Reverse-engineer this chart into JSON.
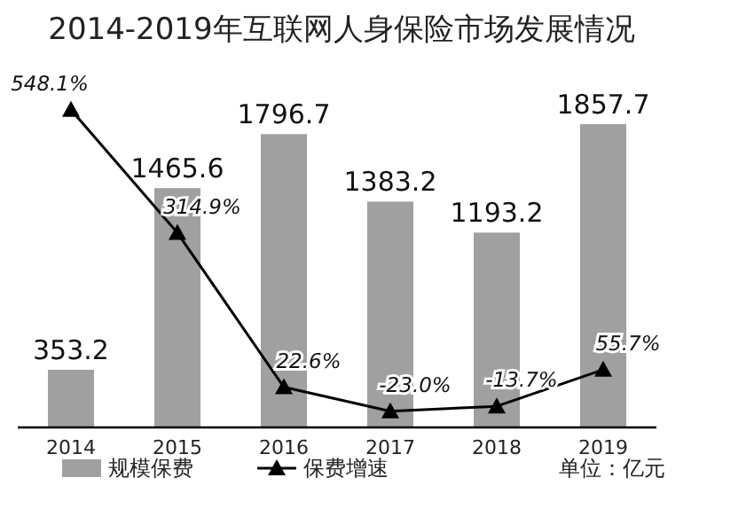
{
  "chart_data": {
    "type": "bar",
    "title": "2014-2019年互联网人身保险市场发展情况",
    "categories": [
      "2014",
      "2015",
      "2016",
      "2017",
      "2018",
      "2019"
    ],
    "series": [
      {
        "name": "规模保费",
        "color": "#a0a0a0",
        "values": [
          353.2,
          1465.6,
          1796.7,
          1383.2,
          1193.2,
          1857.7
        ]
      },
      {
        "name": "保费增速",
        "type": "line",
        "axis": "y2",
        "color": "#000000",
        "marker": "triangle",
        "value_labels": [
          "548.1%",
          "314.9%",
          "22.6%",
          "-23.0%",
          "-13.7%",
          "55.7%"
        ],
        "values": [
          548.1,
          314.9,
          22.6,
          -23.0,
          -13.7,
          55.7
        ]
      }
    ],
    "data_labels": true,
    "legend": "bottom",
    "annotations": [
      "单位：亿元"
    ]
  }
}
